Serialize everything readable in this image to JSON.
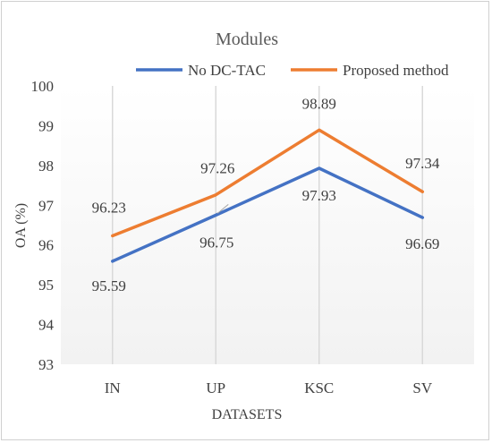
{
  "chart_data": {
    "type": "line",
    "title": "Modules",
    "xlabel": "DATASETS",
    "ylabel": "OA (%)",
    "categories": [
      "IN",
      "UP",
      "KSC",
      "SV"
    ],
    "ylim": [
      93,
      100
    ],
    "yticks": [
      93,
      94,
      95,
      96,
      97,
      98,
      99,
      100
    ],
    "grid": "vertical",
    "legend": "top",
    "series": [
      {
        "name": "No DC-TAC",
        "values": [
          95.59,
          96.75,
          97.93,
          96.69
        ],
        "color": "#4472C4"
      },
      {
        "name": "Proposed method",
        "values": [
          96.23,
          97.26,
          98.89,
          97.34
        ],
        "color": "#ED7D31"
      }
    ]
  }
}
